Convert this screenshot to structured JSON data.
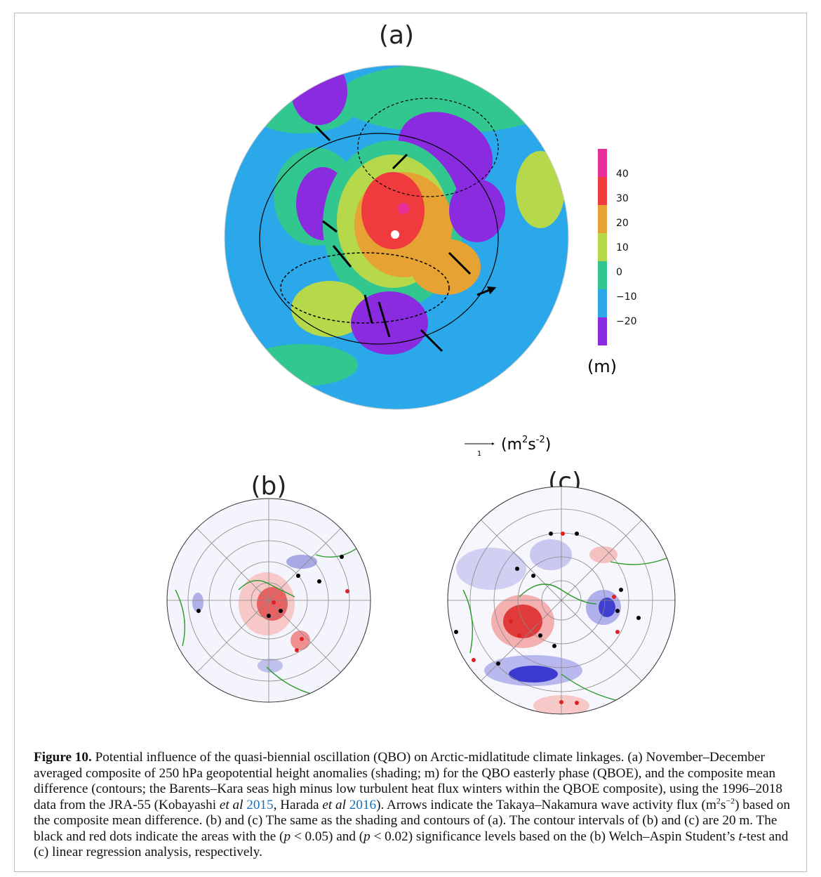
{
  "panels": [
    {
      "label": "(a)"
    },
    {
      "label": "(b)"
    },
    {
      "label": "(c)"
    }
  ],
  "colorbar": {
    "ticks": [
      "40",
      "30",
      "20",
      "10",
      "0",
      "−10",
      "−20"
    ],
    "unit": "(m)"
  },
  "flux_scale": {
    "value": "1",
    "unit": [
      "(m",
      "2",
      "s",
      "-2",
      ")"
    ]
  },
  "caption": [
    "Figure 10.",
    " Potential influence of the quasi-biennial oscillation (QBO) on Arctic-midlatitude climate linkages. (a) November–December averaged composite of 250 hPa geopotential height anomalies (shading; m) for the QBO easterly phase (QBOE), and the composite mean difference (contours; the Barents–Kara seas high minus low turbulent heat flux winters within the QBOE composite), using the 1996–2018 data from the JRA-55 (Kobayashi ",
    "et al",
    " 2015",
    ", Harada ",
    "et al",
    " 2016",
    "). Arrows indicate the Takaya–Nakamura wave activity flux (m",
    "2",
    "s",
    "−2",
    ") based on the composite mean difference. (b) and (c) The same as the shading and contours of (a). The contour intervals of (b) and (c) are 20 m. The black and red dots indicate the areas with the (",
    "p",
    " < 0.05) and (",
    "p",
    " < 0.02) significance levels based on the (b) Welch–Aspin Student’s ",
    "t",
    "-test and (c) linear regression analysis, respectively."
  ]
}
